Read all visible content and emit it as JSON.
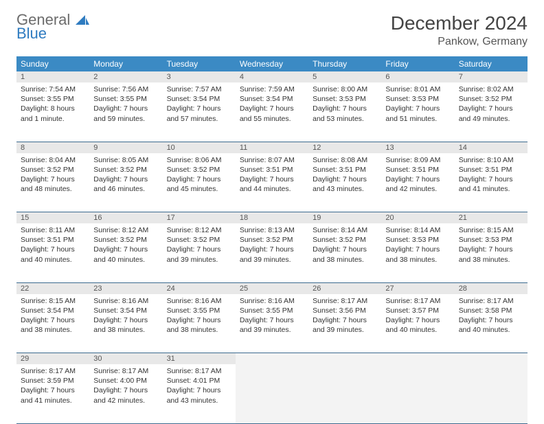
{
  "logo": {
    "text_gray": "General",
    "text_blue": "Blue"
  },
  "title": "December 2024",
  "location": "Pankow, Germany",
  "colors": {
    "header_bg": "#3b8ac4",
    "header_text": "#ffffff",
    "daynum_bg": "#e8e8e8",
    "border": "#3b6a8f",
    "logo_gray": "#6b6b6b",
    "logo_blue": "#2e7bc0"
  },
  "weekdays": [
    "Sunday",
    "Monday",
    "Tuesday",
    "Wednesday",
    "Thursday",
    "Friday",
    "Saturday"
  ],
  "weeks": [
    [
      {
        "day": "1",
        "sunrise": "Sunrise: 7:54 AM",
        "sunset": "Sunset: 3:55 PM",
        "daylight": "Daylight: 8 hours and 1 minute."
      },
      {
        "day": "2",
        "sunrise": "Sunrise: 7:56 AM",
        "sunset": "Sunset: 3:55 PM",
        "daylight": "Daylight: 7 hours and 59 minutes."
      },
      {
        "day": "3",
        "sunrise": "Sunrise: 7:57 AM",
        "sunset": "Sunset: 3:54 PM",
        "daylight": "Daylight: 7 hours and 57 minutes."
      },
      {
        "day": "4",
        "sunrise": "Sunrise: 7:59 AM",
        "sunset": "Sunset: 3:54 PM",
        "daylight": "Daylight: 7 hours and 55 minutes."
      },
      {
        "day": "5",
        "sunrise": "Sunrise: 8:00 AM",
        "sunset": "Sunset: 3:53 PM",
        "daylight": "Daylight: 7 hours and 53 minutes."
      },
      {
        "day": "6",
        "sunrise": "Sunrise: 8:01 AM",
        "sunset": "Sunset: 3:53 PM",
        "daylight": "Daylight: 7 hours and 51 minutes."
      },
      {
        "day": "7",
        "sunrise": "Sunrise: 8:02 AM",
        "sunset": "Sunset: 3:52 PM",
        "daylight": "Daylight: 7 hours and 49 minutes."
      }
    ],
    [
      {
        "day": "8",
        "sunrise": "Sunrise: 8:04 AM",
        "sunset": "Sunset: 3:52 PM",
        "daylight": "Daylight: 7 hours and 48 minutes."
      },
      {
        "day": "9",
        "sunrise": "Sunrise: 8:05 AM",
        "sunset": "Sunset: 3:52 PM",
        "daylight": "Daylight: 7 hours and 46 minutes."
      },
      {
        "day": "10",
        "sunrise": "Sunrise: 8:06 AM",
        "sunset": "Sunset: 3:52 PM",
        "daylight": "Daylight: 7 hours and 45 minutes."
      },
      {
        "day": "11",
        "sunrise": "Sunrise: 8:07 AM",
        "sunset": "Sunset: 3:51 PM",
        "daylight": "Daylight: 7 hours and 44 minutes."
      },
      {
        "day": "12",
        "sunrise": "Sunrise: 8:08 AM",
        "sunset": "Sunset: 3:51 PM",
        "daylight": "Daylight: 7 hours and 43 minutes."
      },
      {
        "day": "13",
        "sunrise": "Sunrise: 8:09 AM",
        "sunset": "Sunset: 3:51 PM",
        "daylight": "Daylight: 7 hours and 42 minutes."
      },
      {
        "day": "14",
        "sunrise": "Sunrise: 8:10 AM",
        "sunset": "Sunset: 3:51 PM",
        "daylight": "Daylight: 7 hours and 41 minutes."
      }
    ],
    [
      {
        "day": "15",
        "sunrise": "Sunrise: 8:11 AM",
        "sunset": "Sunset: 3:51 PM",
        "daylight": "Daylight: 7 hours and 40 minutes."
      },
      {
        "day": "16",
        "sunrise": "Sunrise: 8:12 AM",
        "sunset": "Sunset: 3:52 PM",
        "daylight": "Daylight: 7 hours and 40 minutes."
      },
      {
        "day": "17",
        "sunrise": "Sunrise: 8:12 AM",
        "sunset": "Sunset: 3:52 PM",
        "daylight": "Daylight: 7 hours and 39 minutes."
      },
      {
        "day": "18",
        "sunrise": "Sunrise: 8:13 AM",
        "sunset": "Sunset: 3:52 PM",
        "daylight": "Daylight: 7 hours and 39 minutes."
      },
      {
        "day": "19",
        "sunrise": "Sunrise: 8:14 AM",
        "sunset": "Sunset: 3:52 PM",
        "daylight": "Daylight: 7 hours and 38 minutes."
      },
      {
        "day": "20",
        "sunrise": "Sunrise: 8:14 AM",
        "sunset": "Sunset: 3:53 PM",
        "daylight": "Daylight: 7 hours and 38 minutes."
      },
      {
        "day": "21",
        "sunrise": "Sunrise: 8:15 AM",
        "sunset": "Sunset: 3:53 PM",
        "daylight": "Daylight: 7 hours and 38 minutes."
      }
    ],
    [
      {
        "day": "22",
        "sunrise": "Sunrise: 8:15 AM",
        "sunset": "Sunset: 3:54 PM",
        "daylight": "Daylight: 7 hours and 38 minutes."
      },
      {
        "day": "23",
        "sunrise": "Sunrise: 8:16 AM",
        "sunset": "Sunset: 3:54 PM",
        "daylight": "Daylight: 7 hours and 38 minutes."
      },
      {
        "day": "24",
        "sunrise": "Sunrise: 8:16 AM",
        "sunset": "Sunset: 3:55 PM",
        "daylight": "Daylight: 7 hours and 38 minutes."
      },
      {
        "day": "25",
        "sunrise": "Sunrise: 8:16 AM",
        "sunset": "Sunset: 3:55 PM",
        "daylight": "Daylight: 7 hours and 39 minutes."
      },
      {
        "day": "26",
        "sunrise": "Sunrise: 8:17 AM",
        "sunset": "Sunset: 3:56 PM",
        "daylight": "Daylight: 7 hours and 39 minutes."
      },
      {
        "day": "27",
        "sunrise": "Sunrise: 8:17 AM",
        "sunset": "Sunset: 3:57 PM",
        "daylight": "Daylight: 7 hours and 40 minutes."
      },
      {
        "day": "28",
        "sunrise": "Sunrise: 8:17 AM",
        "sunset": "Sunset: 3:58 PM",
        "daylight": "Daylight: 7 hours and 40 minutes."
      }
    ],
    [
      {
        "day": "29",
        "sunrise": "Sunrise: 8:17 AM",
        "sunset": "Sunset: 3:59 PM",
        "daylight": "Daylight: 7 hours and 41 minutes."
      },
      {
        "day": "30",
        "sunrise": "Sunrise: 8:17 AM",
        "sunset": "Sunset: 4:00 PM",
        "daylight": "Daylight: 7 hours and 42 minutes."
      },
      {
        "day": "31",
        "sunrise": "Sunrise: 8:17 AM",
        "sunset": "Sunset: 4:01 PM",
        "daylight": "Daylight: 7 hours and 43 minutes."
      },
      null,
      null,
      null,
      null
    ]
  ]
}
